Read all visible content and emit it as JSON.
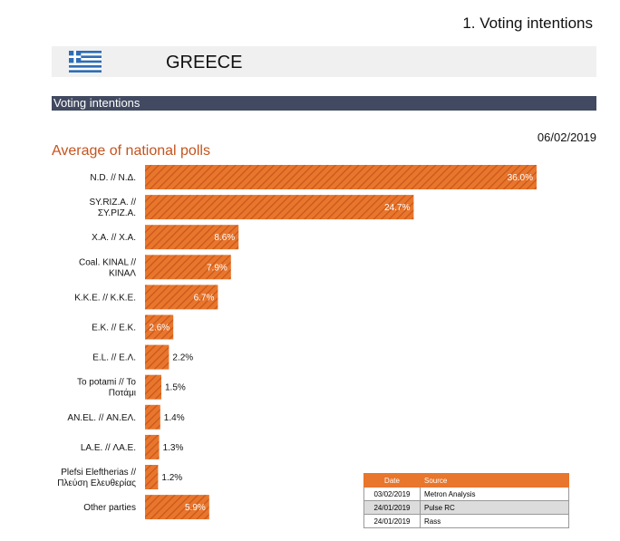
{
  "header": {
    "page_title": "1. Voting intentions",
    "country": "GREECE",
    "flag_icon": "greece-flag-icon",
    "section": "Voting intentions",
    "date": "06/02/2019"
  },
  "colors": {
    "bar": "#e8762c",
    "bar_hatch": "#c9561a",
    "accent_title": "#c5531d",
    "section_band": "#414a60"
  },
  "chart_data": {
    "type": "bar",
    "orientation": "horizontal",
    "title": "Average of national polls",
    "unit": "%",
    "categories": [
      [
        "N.D. // Ν.Δ."
      ],
      [
        "SY.RIZ.A. //",
        "ΣΥ.ΡΙΖ.Α."
      ],
      [
        "X.A. // Χ.Α."
      ],
      [
        "Coal. KINAL //",
        "ΚΙΝΑΛ"
      ],
      [
        "K.K.E. // Κ.Κ.Ε."
      ],
      [
        "E.K. // Ε.Κ."
      ],
      [
        "E.L. // Ε.Λ."
      ],
      [
        "To potami // Το",
        "Ποτάμι"
      ],
      [
        "AN.EL. // ΑΝ.ΕΛ."
      ],
      [
        "LA.E. // ΛΑ.Ε."
      ],
      [
        "Plefsi Eleftherias //",
        "Πλεύση Ελευθερίας"
      ],
      [
        "Other parties"
      ]
    ],
    "values": [
      36.0,
      24.7,
      8.6,
      7.9,
      6.7,
      2.6,
      2.2,
      1.5,
      1.4,
      1.3,
      1.2,
      5.9
    ],
    "data_labels": [
      "36.0%",
      "24.7%",
      "8.6%",
      "7.9%",
      "6.7%",
      "2.6%",
      "2.2%",
      "1.5%",
      "1.4%",
      "1.3%",
      "1.2%",
      "5.9%"
    ],
    "label_inside": [
      true,
      true,
      true,
      true,
      true,
      true,
      false,
      false,
      false,
      false,
      false,
      true
    ],
    "xlim": [
      0,
      36.0
    ],
    "grid": false,
    "legend": "none"
  },
  "sources": {
    "headers": [
      "Date",
      "Source"
    ],
    "rows": [
      [
        "03/02/2019",
        "Metron Analysis"
      ],
      [
        "24/01/2019",
        "Pulse RC"
      ],
      [
        "24/01/2019",
        "Rass"
      ]
    ]
  }
}
